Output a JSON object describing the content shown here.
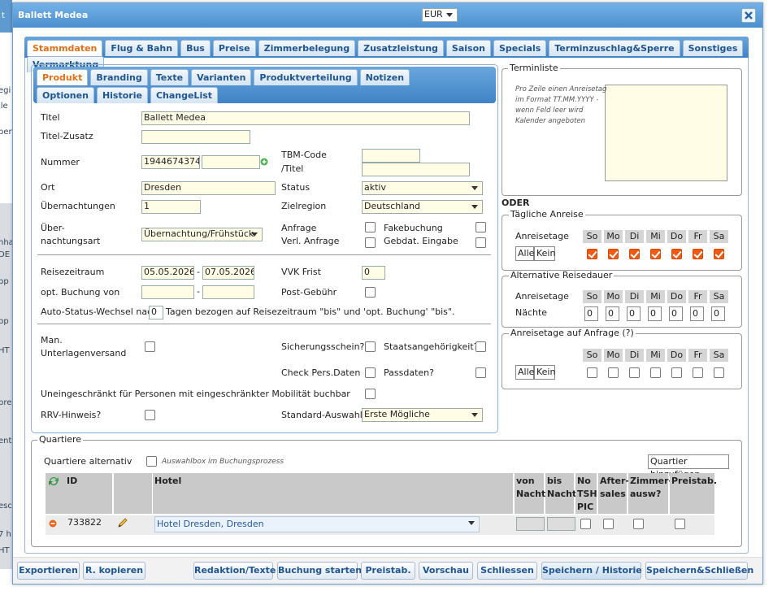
{
  "background_fragments": [
    "t",
    "egi",
    "lle",
    "ber",
    "nha",
    "DE",
    "pp",
    "pp",
    "HT",
    "pre",
    "ent",
    "esc",
    "7 h",
    "HT"
  ],
  "dialog": {
    "title": "Ballett Medea",
    "currency": "EUR"
  },
  "tabs": [
    "Stammdaten",
    "Flug & Bahn",
    "Bus",
    "Preise",
    "Zimmerbelegung",
    "Zusatzleistung",
    "Saison",
    "Specials",
    "Terminzuschlag&Sperre",
    "Sonstiges",
    "Vermarktung"
  ],
  "subtabs": [
    "Produkt",
    "Branding",
    "Texte",
    "Varianten",
    "Produktverteilung",
    "Notizen",
    "Optionen",
    "Historie",
    "ChangeList"
  ],
  "form": {
    "titel_label": "Titel",
    "titel": "Ballett Medea",
    "titel_zusatz_label": "Titel-Zusatz",
    "nummer_label": "Nummer",
    "nummer": "1944674374",
    "tbm_label_1": "TBM-Code",
    "tbm_label_2": "/Titel",
    "ort_label": "Ort",
    "ort": "Dresden",
    "status_label": "Status",
    "status": "aktiv",
    "uebernachtungen_label": "Übernachtungen",
    "uebernachtungen": "1",
    "zielregion_label": "Zielregion",
    "zielregion": "Deutschland",
    "uebernachtungsart_label_1": "Über-",
    "uebernachtungsart_label_2": "nachtungsart",
    "uebernachtungsart": "Übernachtung/Frühstück",
    "anfrage_label": "Anfrage",
    "verl_anfrage_label": "Verl. Anfrage",
    "fakebuchung_label": "Fakebuchung",
    "gebdat_label": "Gebdat. Eingabe",
    "reisezeitraum_label": "Reisezeitraum",
    "reisezeitraum_von": "05.05.2026",
    "dash": "-",
    "reisezeitraum_bis": "07.05.2026",
    "vvk_frist_label": "VVK Frist",
    "vvk_frist": "0",
    "opt_buchung_label": "opt. Buchung von",
    "post_gebuehr_label": "Post-Gebühr",
    "auto_status_1": "Auto-Status-Wechsel nach",
    "auto_status_value": "0",
    "auto_status_2": "Tagen bezogen auf Reisezeitraum \"bis\" und 'opt. Buchung' \"bis\".",
    "man_unterlagen_1": "Man.",
    "man_unterlagen_2": "Unterlagenversand",
    "sicherungsschein": "Sicherungsschein?",
    "staatsangehoerigkeit": "Staatsangehörigkeit?",
    "check_pers": "Check Pers.Daten",
    "passdaten": "Passdaten?",
    "mobilitaet": "Uneingeschränkt für Personen mit eingeschränkter Mobilität buchbar",
    "rrv": "RRV-Hinweis?",
    "standard_auswahl_label": "Standard-Auswahl",
    "standard_auswahl": "Erste Mögliche"
  },
  "terminliste": {
    "legend": "Terminliste",
    "hint": [
      "Pro Zeile einen Anreisetag",
      "im Format TT.MM.YYYY -",
      "wenn Feld leer wird",
      "Kalender angeboten"
    ],
    "oder": "ODER"
  },
  "anreise": {
    "taegliche_legend": "Tägliche Anreise",
    "alternative_legend": "Alternative Reisedauer",
    "anfrage_legend": "Anreisetage auf Anfrage (?)",
    "anreisetage": "Anreisetage",
    "naechte_label": "Nächte",
    "weekdays": [
      "So",
      "Mo",
      "Di",
      "Mi",
      "Do",
      "Fr",
      "Sa"
    ],
    "naechte": [
      0,
      0,
      0,
      0,
      0,
      0,
      0
    ],
    "alle": "Alle",
    "kein": "Kein"
  },
  "quartiere": {
    "legend": "Quartiere",
    "alternativ_label": "Quartiere alternativ",
    "auswahlbox": "Auswahlbox im Buchungsprozess",
    "add_button": "Quartier hinzufügen",
    "columns": [
      "ID",
      "Hotel",
      "von Nacht",
      "bis Nacht",
      "No TSH PIC",
      "After-sales",
      "Zimmer-ausw?",
      "Preistab."
    ],
    "rows": [
      {
        "id": "733822",
        "hotel": "Hotel Dresden, Dresden"
      }
    ]
  },
  "footer": {
    "left": [
      "Exportieren",
      "R. kopieren"
    ],
    "right": [
      "Redaktion/Texte",
      "Buchung starten",
      "Preistab.",
      "Vorschau",
      "Schliessen",
      "Speichern / Historie +",
      "Speichern&Schließen"
    ]
  }
}
